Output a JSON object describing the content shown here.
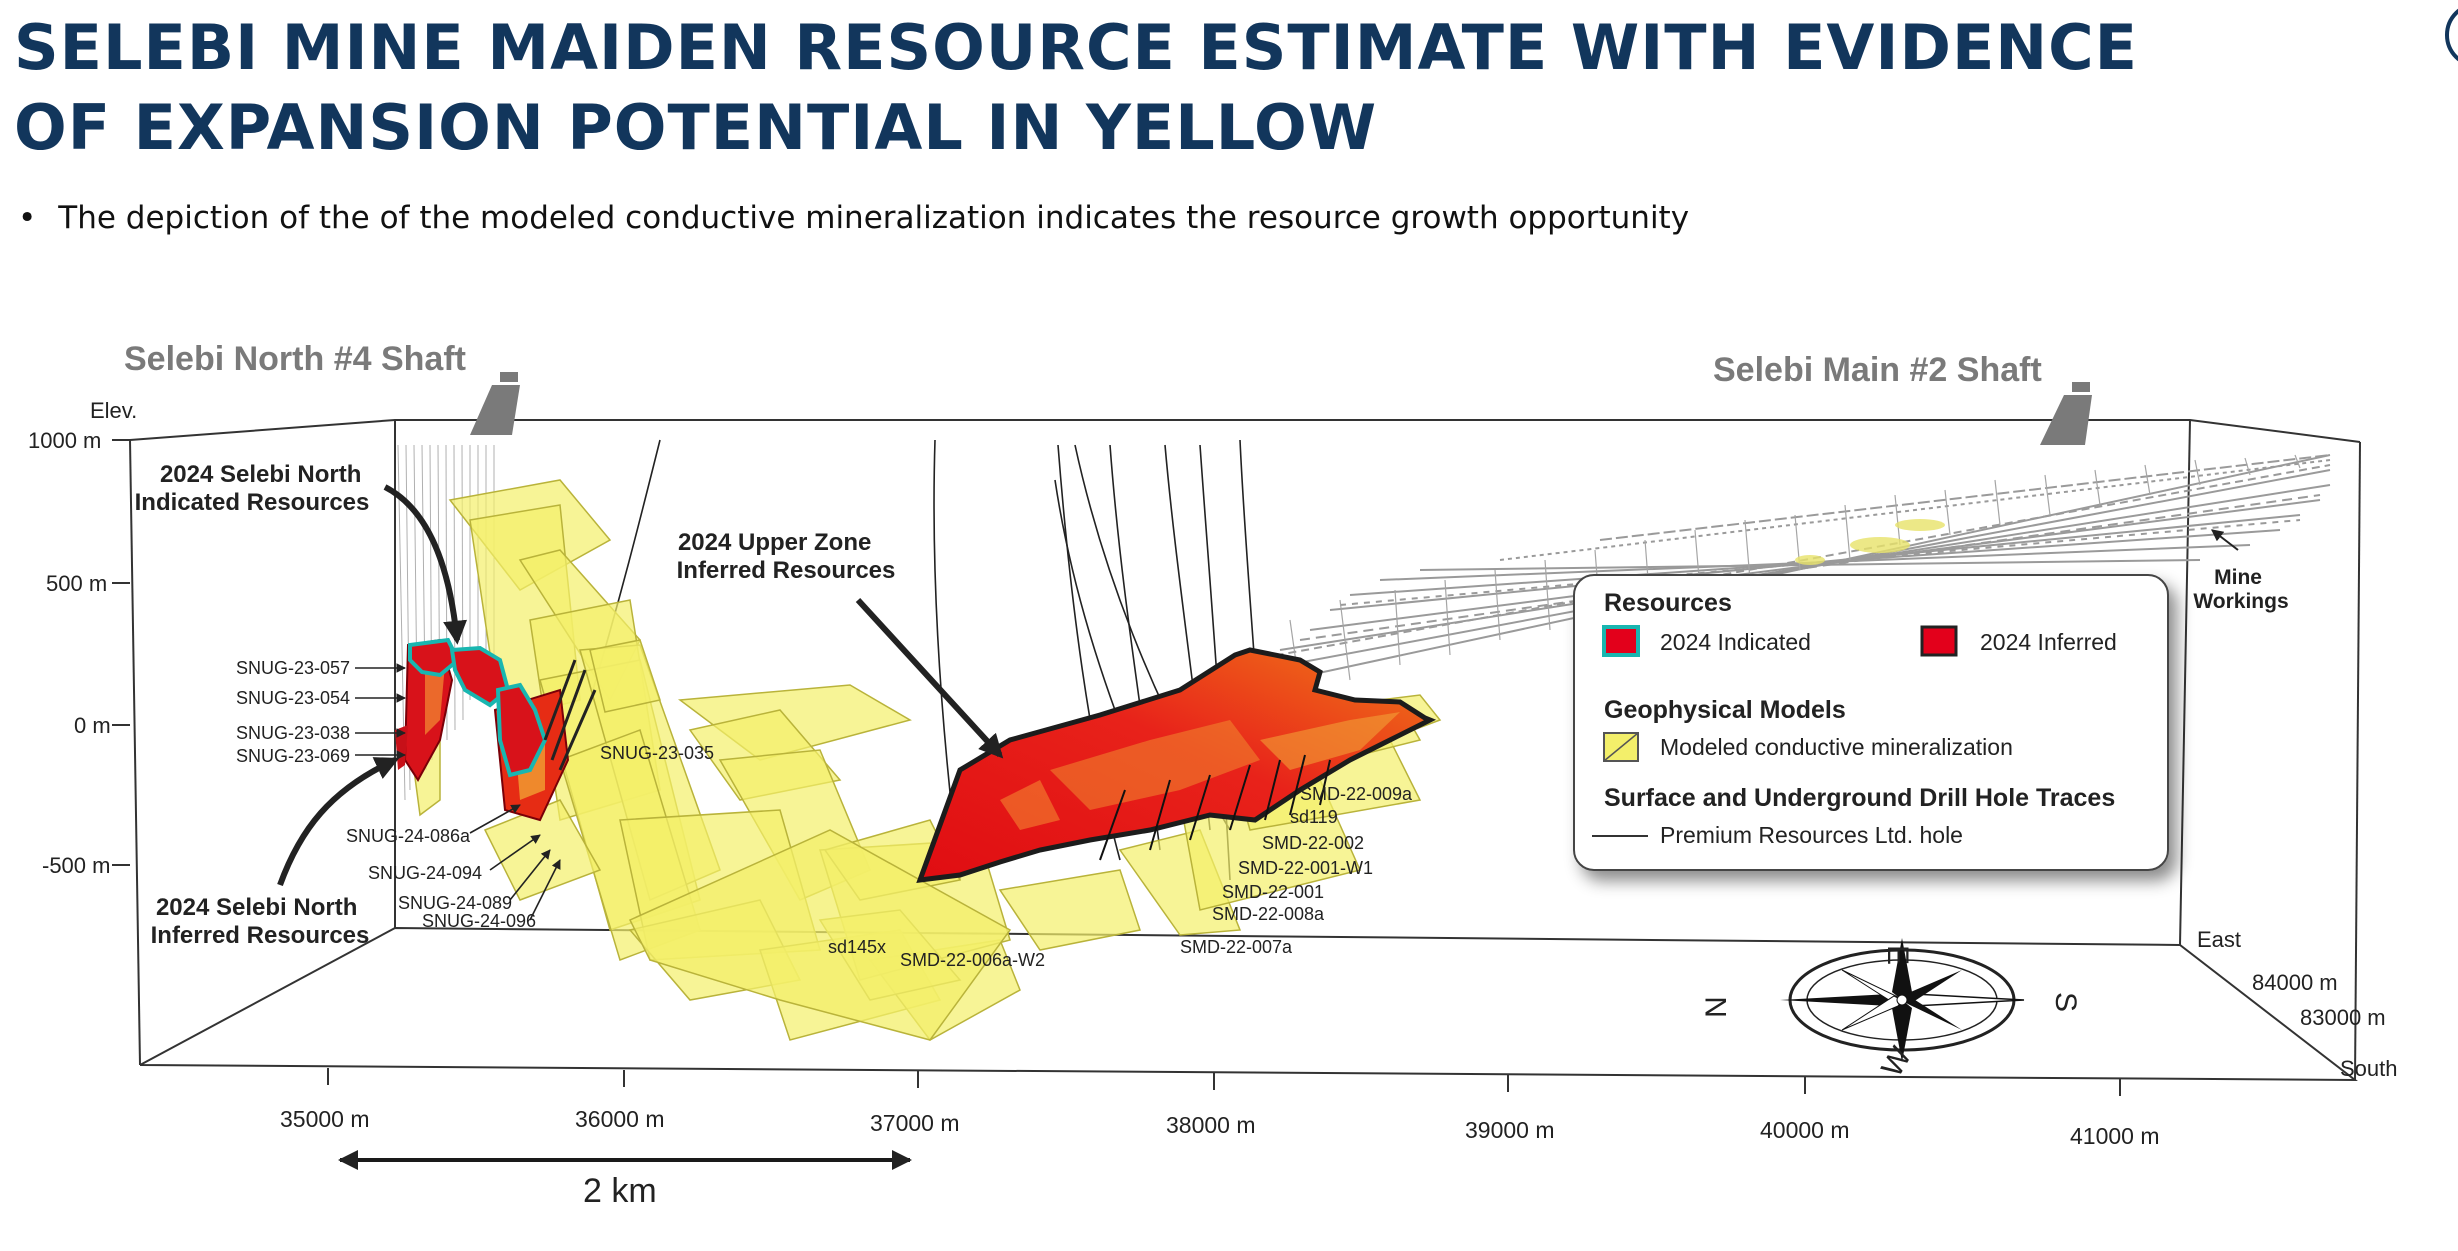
{
  "title": "SELEBI MINE MAIDEN RESOURCE ESTIMATE WITH EVIDENCE OF EXPANSION POTENTIAL IN YELLOW",
  "bullet": "The depiction of the of the modeled conductive mineralization indicates the resource growth opportunity",
  "shafts": {
    "north": "Selebi North #4 Shaft",
    "main": "Selebi Main #2 Shaft"
  },
  "elev_label": "Elev.",
  "elevation_ticks": [
    "1000 m",
    "500 m",
    "0 m",
    "-500 m"
  ],
  "easting_ticks": [
    "35000 m",
    "36000 m",
    "37000 m",
    "38000 m",
    "39000 m",
    "40000 m",
    "41000 m"
  ],
  "northing_ticks": [
    "84000 m",
    "83000 m"
  ],
  "axis_words": {
    "east": "East",
    "south": "South"
  },
  "compass": {
    "n": "N",
    "e": "E",
    "s": "S",
    "w": "W"
  },
  "scale_bar": "2 km",
  "callouts": {
    "north_indicated_1": "2024 Selebi North",
    "north_indicated_2": "Indicated Resources",
    "north_inferred_1": "2024 Selebi North",
    "north_inferred_2": "Inferred Resources",
    "upper_zone_1": "2024 Upper Zone",
    "upper_zone_2": "Inferred Resources",
    "mine_workings_1": "Mine",
    "mine_workings_2": "Workings"
  },
  "drill_holes_left": [
    "SNUG-23-057",
    "SNUG-23-054",
    "SNUG-23-038",
    "SNUG-23-069"
  ],
  "drill_holes_bottom_left": [
    "SNUG-24-086a",
    "SNUG-24-094",
    "SNUG-24-089",
    "SNUG-24-096"
  ],
  "drill_hole_035": "SNUG-23-035",
  "drill_holes_right": [
    "SMD-22-009a",
    "sd119",
    "SMD-22-002",
    "SMD-22-001-W1",
    "SMD-22-001",
    "SMD-22-008a",
    "SMD-22-007a"
  ],
  "drill_holes_bottom_mid": [
    "sd145x",
    "SMD-22-006a-W2"
  ],
  "legend": {
    "resources_title": "Resources",
    "indicated": "2024 Indicated",
    "inferred": "2024 Inferred",
    "geophysical_title": "Geophysical Models",
    "modeled": "Modeled conductive mineralization",
    "drill_title": "Surface and Underground  Drill Hole Traces",
    "hole": "Premium Resources Ltd. hole"
  },
  "colors": {
    "title": "#12365c",
    "indicated_fill": "#e3001b",
    "indicated_outline": "#19b6b0",
    "inferred_fill": "#e3001b",
    "conductor": "#f3ef6a",
    "workings": "#9a9a9a"
  }
}
